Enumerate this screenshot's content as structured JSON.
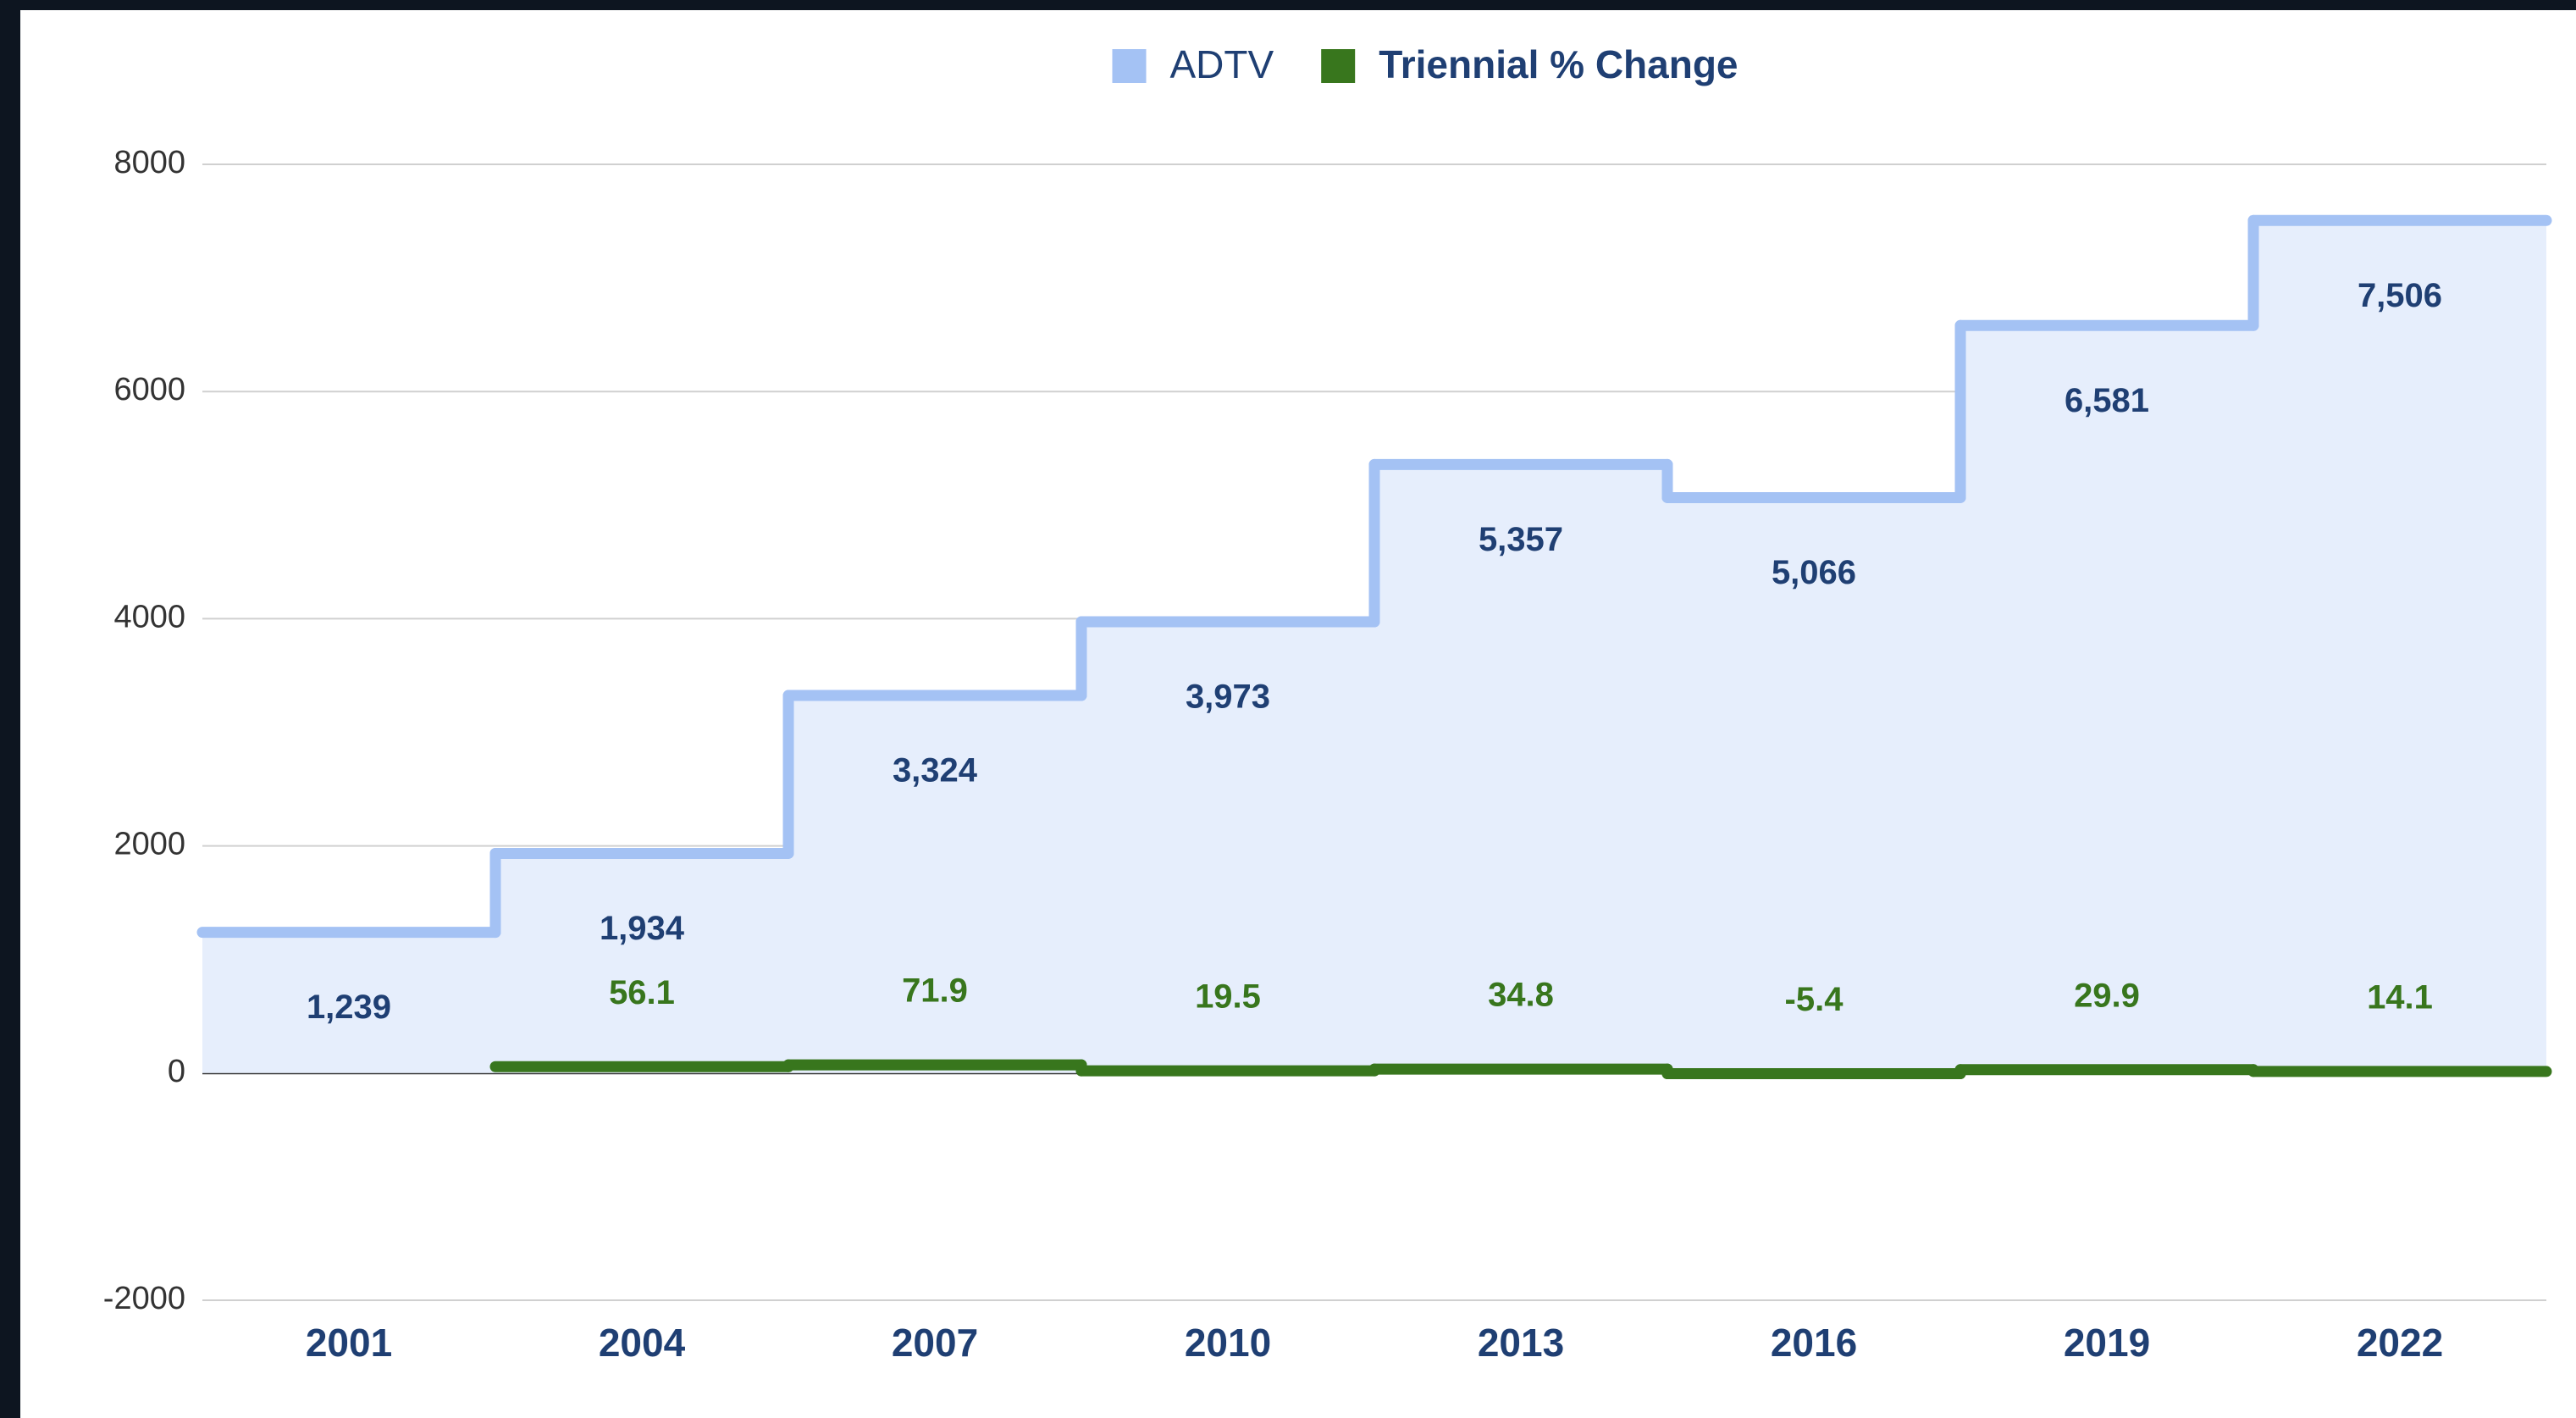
{
  "chart_data": {
    "type": "step",
    "categories": [
      "2001",
      "2004",
      "2007",
      "2010",
      "2013",
      "2016",
      "2019",
      "2022"
    ],
    "series": [
      {
        "name": "ADTV",
        "color": "#a4c2f4",
        "fill": "#e6eefc",
        "values": [
          1239,
          1934,
          3324,
          3973,
          5357,
          5066,
          6581,
          7506
        ],
        "value_labels": [
          "1,239",
          "1,934",
          "3,324",
          "3,973",
          "5,357",
          "5,066",
          "6,581",
          "7,506"
        ]
      },
      {
        "name": "Triennial % Change",
        "color": "#38761d",
        "values": [
          null,
          56.1,
          71.9,
          19.5,
          34.8,
          -5.4,
          29.9,
          14.1
        ]
      }
    ],
    "ylim": [
      -2000,
      8000
    ],
    "yticks": [
      -2000,
      0,
      2000,
      4000,
      6000,
      8000
    ],
    "grid": true,
    "legend": "top"
  }
}
